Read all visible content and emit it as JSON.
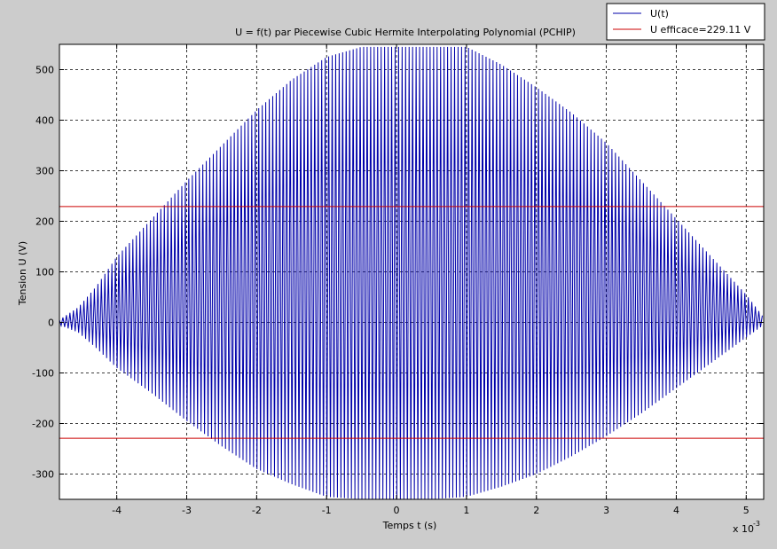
{
  "figure": {
    "background": "#cccccc",
    "axes_background": "#ffffff"
  },
  "chart_data": {
    "type": "line",
    "title": "U  = f(t) par Piecewise Cubic Hermite Interpolating Polynomial (PCHIP)",
    "xlabel": "Temps t (s)",
    "ylabel": "Tension U (V)",
    "x_exponent_label": "x 10",
    "x_exponent_value": "-3",
    "xlim": [
      -4.82,
      5.25
    ],
    "ylim": [
      -350,
      550
    ],
    "x_scale_factor": 0.001,
    "xticks": [
      -4,
      -3,
      -2,
      -1,
      0,
      1,
      2,
      3,
      4,
      5
    ],
    "yticks": [
      -300,
      -200,
      -100,
      0,
      100,
      200,
      300,
      400,
      500
    ],
    "grid": true,
    "legend_position": "top-right outside axes",
    "series": [
      {
        "name": "U(t)",
        "color": "#0000aa",
        "kind": "oscillating",
        "t_start": -4.82,
        "t_end": 5.25,
        "period": 0.05,
        "offset": 0,
        "envelope": [
          [
            -4.82,
            5
          ],
          [
            -4.55,
            30
          ],
          [
            -4.3,
            70
          ],
          [
            -4.0,
            130
          ],
          [
            -3.5,
            205
          ],
          [
            -3.0,
            280
          ],
          [
            -2.5,
            350
          ],
          [
            -2.0,
            420
          ],
          [
            -1.5,
            480
          ],
          [
            -1.0,
            525
          ],
          [
            -0.5,
            545
          ],
          [
            0.0,
            545
          ],
          [
            0.5,
            545
          ],
          [
            1.0,
            545
          ],
          [
            1.5,
            510
          ],
          [
            2.0,
            465
          ],
          [
            2.5,
            415
          ],
          [
            3.0,
            355
          ],
          [
            3.5,
            280
          ],
          [
            4.0,
            205
          ],
          [
            4.5,
            130
          ],
          [
            5.0,
            55
          ],
          [
            5.25,
            10
          ]
        ],
        "lower_envelope": [
          [
            -4.82,
            -5
          ],
          [
            -4.55,
            -20
          ],
          [
            -4.3,
            -50
          ],
          [
            -4.0,
            -90
          ],
          [
            -3.5,
            -140
          ],
          [
            -3.0,
            -195
          ],
          [
            -2.5,
            -245
          ],
          [
            -2.0,
            -290
          ],
          [
            -1.5,
            -320
          ],
          [
            -1.0,
            -345
          ],
          [
            -0.5,
            -350
          ],
          [
            0.0,
            -350
          ],
          [
            0.5,
            -350
          ],
          [
            1.0,
            -345
          ],
          [
            1.5,
            -325
          ],
          [
            2.0,
            -300
          ],
          [
            2.5,
            -265
          ],
          [
            3.0,
            -225
          ],
          [
            3.5,
            -180
          ],
          [
            4.0,
            -130
          ],
          [
            4.5,
            -80
          ],
          [
            5.0,
            -30
          ],
          [
            5.25,
            -5
          ]
        ]
      },
      {
        "name": "U efficace=229.11 V",
        "color": "#cc0000",
        "kind": "hlines",
        "values": [
          229.11,
          -229.11
        ]
      }
    ]
  }
}
